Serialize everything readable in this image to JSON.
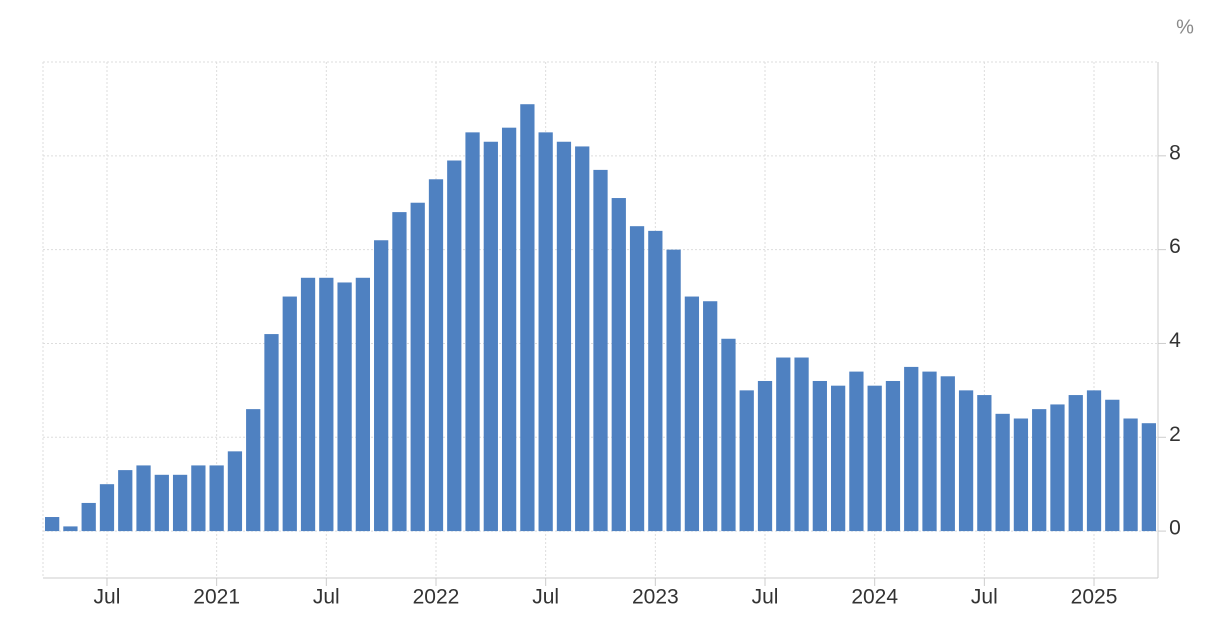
{
  "chart_data": {
    "type": "bar",
    "unit": "%",
    "categories": [
      null,
      null,
      null,
      "Jul",
      null,
      null,
      null,
      null,
      null,
      "2021",
      null,
      null,
      null,
      null,
      null,
      "Jul",
      null,
      null,
      null,
      null,
      null,
      "2022",
      null,
      null,
      null,
      null,
      null,
      "Jul",
      null,
      null,
      null,
      null,
      null,
      "2023",
      null,
      null,
      null,
      null,
      null,
      "Jul",
      null,
      null,
      null,
      null,
      null,
      "2024",
      null,
      null,
      null,
      null,
      null,
      "Jul",
      null,
      null,
      null,
      null,
      null,
      "2025",
      null,
      null,
      null
    ],
    "values": [
      0.3,
      0.1,
      0.6,
      1.0,
      1.3,
      1.4,
      1.2,
      1.2,
      1.4,
      1.4,
      1.7,
      2.6,
      4.2,
      5.0,
      5.4,
      5.4,
      5.3,
      5.4,
      6.2,
      6.8,
      7.0,
      7.5,
      7.9,
      8.5,
      8.3,
      8.6,
      9.1,
      8.5,
      8.3,
      8.2,
      7.7,
      7.1,
      6.5,
      6.4,
      6.0,
      5.0,
      4.9,
      4.1,
      3.0,
      3.2,
      3.7,
      3.7,
      3.2,
      3.1,
      3.4,
      3.1,
      3.2,
      3.5,
      3.4,
      3.3,
      3.0,
      2.9,
      2.5,
      2.4,
      2.6,
      2.7,
      2.9,
      3.0,
      2.8,
      2.4,
      2.3
    ],
    "color": "#4f81c1",
    "ylim": [
      -1,
      10
    ],
    "yticks": [
      0,
      2,
      4,
      6,
      8
    ],
    "grid": true
  }
}
